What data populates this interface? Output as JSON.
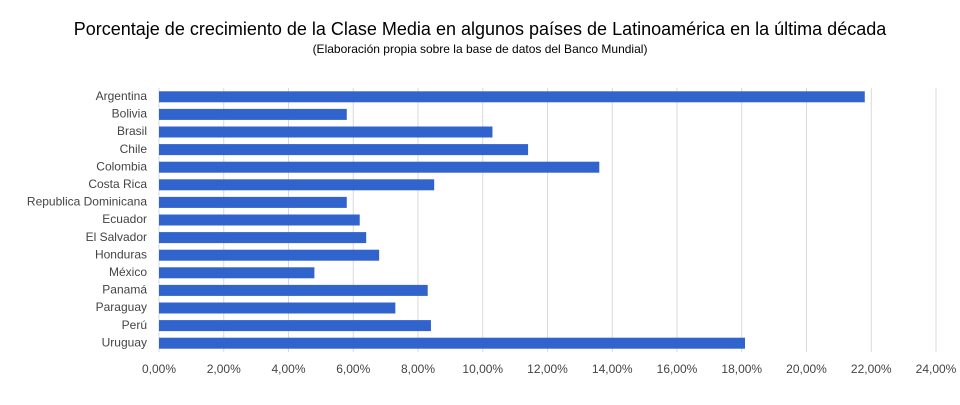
{
  "chart_data": {
    "type": "bar",
    "orientation": "horizontal",
    "title": "Porcentaje de crecimiento de la Clase Media en algunos países de Latinoamérica en la última década",
    "subtitle": "(Elaboración propia sobre la base de datos del Banco Mundial)",
    "categories": [
      "Argentina",
      "Bolivia",
      "Brasil",
      "Chile",
      "Colombia",
      "Costa Rica",
      "Republica Dominicana",
      "Ecuador",
      "El Salvador",
      "Honduras",
      "México",
      "Panamá",
      "Paraguay",
      "Perú",
      "Uruguay"
    ],
    "values": [
      21.8,
      5.8,
      10.3,
      11.4,
      13.6,
      8.5,
      5.8,
      6.2,
      6.4,
      6.8,
      4.8,
      8.3,
      7.3,
      8.4,
      18.1
    ],
    "color": "#3163cc",
    "xlim": [
      0,
      24
    ],
    "xticks": [
      {
        "value": 0,
        "label": "0,00%"
      },
      {
        "value": 2,
        "label": "2,00%"
      },
      {
        "value": 4,
        "label": "4,00%"
      },
      {
        "value": 6,
        "label": "6,00%"
      },
      {
        "value": 8,
        "label": "8,00%"
      },
      {
        "value": 10,
        "label": "10,00%"
      },
      {
        "value": 12,
        "label": "12,00%"
      },
      {
        "value": 14,
        "label": "14,00%"
      },
      {
        "value": 16,
        "label": "16,00%"
      },
      {
        "value": 18,
        "label": "18,00%"
      },
      {
        "value": 20,
        "label": "20,00%"
      },
      {
        "value": 22,
        "label": "22,00%"
      },
      {
        "value": 24,
        "label": "24,00%"
      }
    ],
    "grid": true
  }
}
